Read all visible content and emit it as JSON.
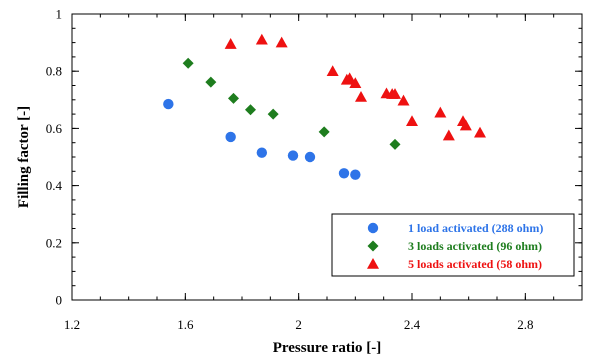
{
  "chart_data": {
    "type": "scatter",
    "xlabel": "Pressure ratio [-]",
    "ylabel": "Filling factor [-]",
    "xlim": [
      1.2,
      3.0
    ],
    "ylim": [
      0,
      1
    ],
    "xticks": [
      "1.2",
      "1.6",
      "2",
      "2.4",
      "2.8"
    ],
    "xtick_values": [
      1.2,
      1.6,
      2.0,
      2.4,
      2.8
    ],
    "yticks": [
      "0",
      "0.2",
      "0.4",
      "0.6",
      "0.8",
      "1"
    ],
    "ytick_values": [
      0,
      0.2,
      0.4,
      0.6,
      0.8,
      1.0
    ],
    "x_minor_step": 0.1,
    "y_minor_step": 0.05,
    "grid": false,
    "legend_position": "bottom-right",
    "series": [
      {
        "name": "1 load activated (288 ohm)",
        "marker": "circle",
        "color": "#2e74e8",
        "points": [
          [
            1.54,
            0.685
          ],
          [
            1.76,
            0.57
          ],
          [
            1.87,
            0.515
          ],
          [
            1.98,
            0.505
          ],
          [
            2.04,
            0.5
          ],
          [
            2.16,
            0.443
          ],
          [
            2.2,
            0.438
          ]
        ]
      },
      {
        "name": "3 loads activated (96 ohm)",
        "marker": "diamond",
        "color": "#1e7d1e",
        "points": [
          [
            1.61,
            0.828
          ],
          [
            1.69,
            0.762
          ],
          [
            1.77,
            0.705
          ],
          [
            1.83,
            0.665
          ],
          [
            1.91,
            0.65
          ],
          [
            2.09,
            0.588
          ],
          [
            2.34,
            0.544
          ]
        ]
      },
      {
        "name": "5 loads activated (58 ohm)",
        "marker": "triangle",
        "color": "#ee1111",
        "points": [
          [
            1.76,
            0.895
          ],
          [
            1.87,
            0.91
          ],
          [
            1.94,
            0.9
          ],
          [
            2.12,
            0.8
          ],
          [
            2.17,
            0.77
          ],
          [
            2.18,
            0.775
          ],
          [
            2.2,
            0.758
          ],
          [
            2.22,
            0.71
          ],
          [
            2.31,
            0.722
          ],
          [
            2.33,
            0.72
          ],
          [
            2.34,
            0.72
          ],
          [
            2.37,
            0.697
          ],
          [
            2.4,
            0.625
          ],
          [
            2.5,
            0.655
          ],
          [
            2.53,
            0.575
          ],
          [
            2.58,
            0.625
          ],
          [
            2.59,
            0.61
          ],
          [
            2.64,
            0.585
          ]
        ]
      }
    ]
  }
}
